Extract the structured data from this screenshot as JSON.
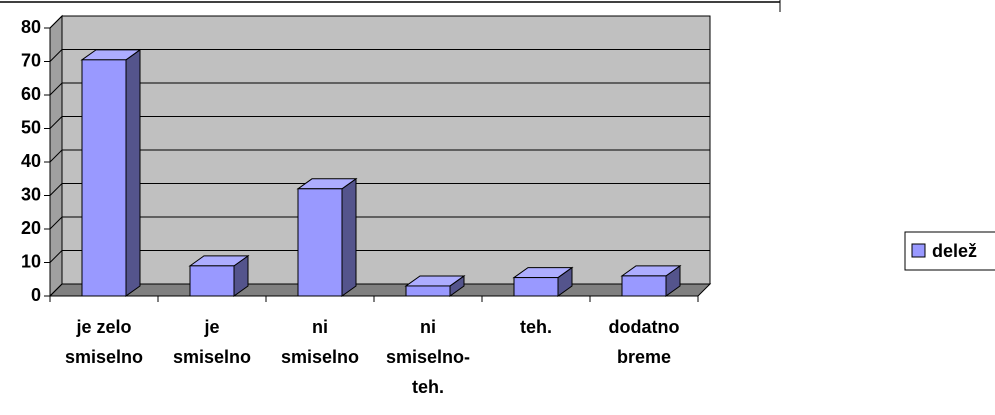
{
  "chart_data": {
    "type": "bar3d",
    "categories": [
      [
        "je zelo",
        "smiselno"
      ],
      [
        "je",
        "smiselno"
      ],
      [
        "ni",
        "smiselno"
      ],
      [
        "ni",
        "smiselno-",
        "teh."
      ],
      [
        "teh."
      ],
      [
        "dodatno",
        "breme"
      ]
    ],
    "series": [
      {
        "name": "delež",
        "color": "#9999ff",
        "values": [
          70.5,
          9,
          32,
          3,
          5.5,
          6
        ]
      }
    ],
    "ylim": [
      0,
      80
    ],
    "yticks": [
      0,
      10,
      20,
      30,
      40,
      50,
      60,
      70,
      80
    ],
    "grid": true,
    "legend": "right"
  }
}
